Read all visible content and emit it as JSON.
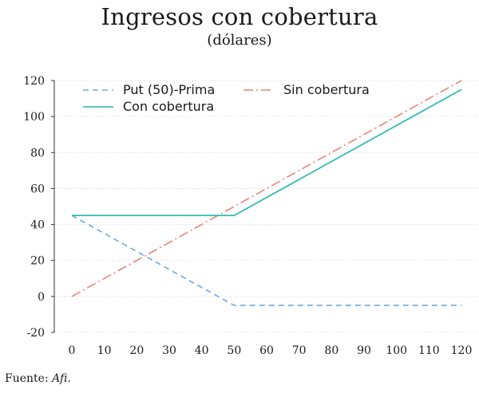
{
  "chart_data": {
    "type": "line",
    "title": "Ingresos con cobertura",
    "subtitle": "(dólares)",
    "xlim": [
      0,
      120
    ],
    "ylim": [
      -20,
      120
    ],
    "x_ticks": [
      0,
      10,
      20,
      30,
      40,
      50,
      60,
      70,
      80,
      90,
      100,
      110,
      120
    ],
    "y_ticks": [
      -20,
      0,
      20,
      40,
      60,
      80,
      100,
      120
    ],
    "x_tick_labels": [
      "0",
      "10",
      "20",
      "30",
      "40",
      "50",
      "60",
      "70",
      "80",
      "90",
      "100",
      "110",
      "120"
    ],
    "y_tick_labels": [
      "-20",
      "0",
      "20",
      "40",
      "60",
      "80",
      "100",
      "120"
    ],
    "grid": "horizontal",
    "legend_position": "top-left",
    "series": [
      {
        "name": "Put (50)-Prima",
        "style": "dashed",
        "color": "#6fa8dc",
        "points": [
          [
            0,
            45
          ],
          [
            50,
            -5
          ],
          [
            120,
            -5
          ]
        ]
      },
      {
        "name": "Sin cobertura",
        "style": "dash-dot",
        "color": "#e6857a",
        "points": [
          [
            0,
            0
          ],
          [
            120,
            120
          ]
        ]
      },
      {
        "name": "Con cobertura",
        "style": "solid",
        "color": "#1fb5ad",
        "points": [
          [
            0,
            45
          ],
          [
            50,
            45
          ],
          [
            120,
            115
          ]
        ]
      }
    ]
  },
  "source": {
    "prefix": "Fuente: ",
    "name": "Afi",
    "suffix": "."
  }
}
